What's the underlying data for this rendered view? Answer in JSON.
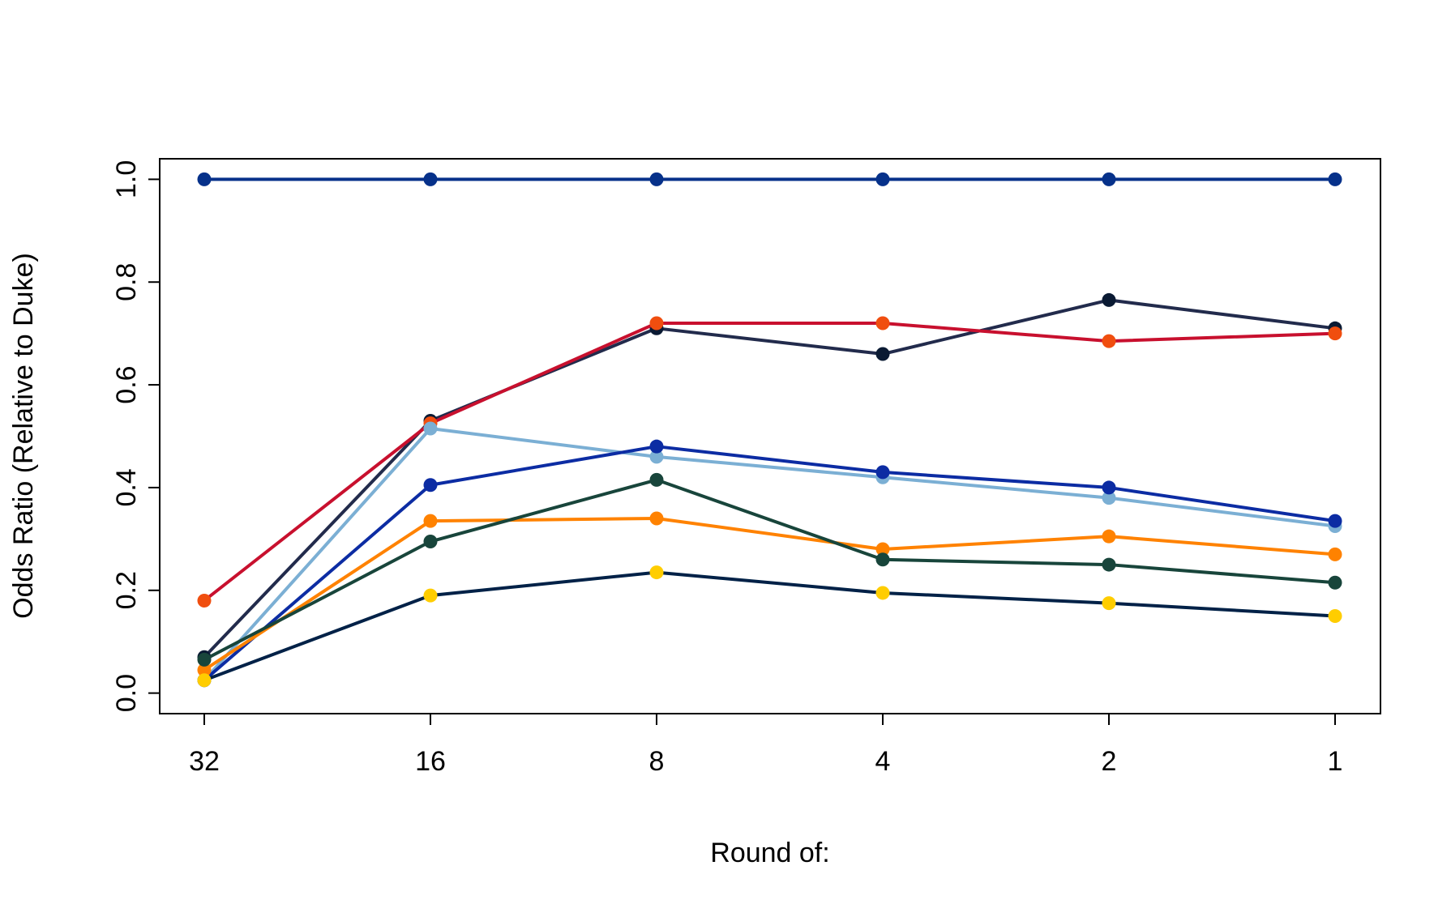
{
  "chart_data": {
    "type": "line",
    "title": "",
    "xlabel": "Round of:",
    "ylabel": "Odds Ratio (Relative to Duke)",
    "categories": [
      "32",
      "16",
      "8",
      "4",
      "2",
      "1"
    ],
    "ylim": [
      -0.04,
      1.04
    ],
    "yticks": [
      "0.0",
      "0.2",
      "0.4",
      "0.6",
      "0.8",
      "1.0"
    ],
    "grid": false,
    "legend": "none",
    "series": [
      {
        "line_color": "#06318A",
        "point_color": "#06318A",
        "values": [
          1.0,
          1.0,
          1.0,
          1.0,
          1.0,
          1.0
        ]
      },
      {
        "line_color": "#222B4C",
        "point_color": "#0A1A33",
        "values": [
          0.07,
          0.53,
          0.71,
          0.66,
          0.765,
          0.71
        ]
      },
      {
        "line_color": "#C8102E",
        "point_color": "#F04E0F",
        "values": [
          0.18,
          0.525,
          0.72,
          0.72,
          0.685,
          0.7
        ]
      },
      {
        "line_color": "#7BAFD4",
        "point_color": "#7BAFD4",
        "values": [
          0.025,
          0.515,
          0.46,
          0.42,
          0.38,
          0.325
        ]
      },
      {
        "line_color": "#0C2CA3",
        "point_color": "#0C2CA3",
        "values": [
          0.025,
          0.405,
          0.48,
          0.43,
          0.4,
          0.335
        ]
      },
      {
        "line_color": "#FF8200",
        "point_color": "#FF8200",
        "values": [
          0.045,
          0.335,
          0.34,
          0.28,
          0.305,
          0.27
        ]
      },
      {
        "line_color": "#18453B",
        "point_color": "#18453B",
        "values": [
          0.065,
          0.295,
          0.415,
          0.26,
          0.25,
          0.215
        ]
      },
      {
        "line_color": "#002147",
        "point_color": "#FFCD00",
        "values": [
          0.025,
          0.19,
          0.235,
          0.195,
          0.175,
          0.15
        ]
      }
    ]
  }
}
